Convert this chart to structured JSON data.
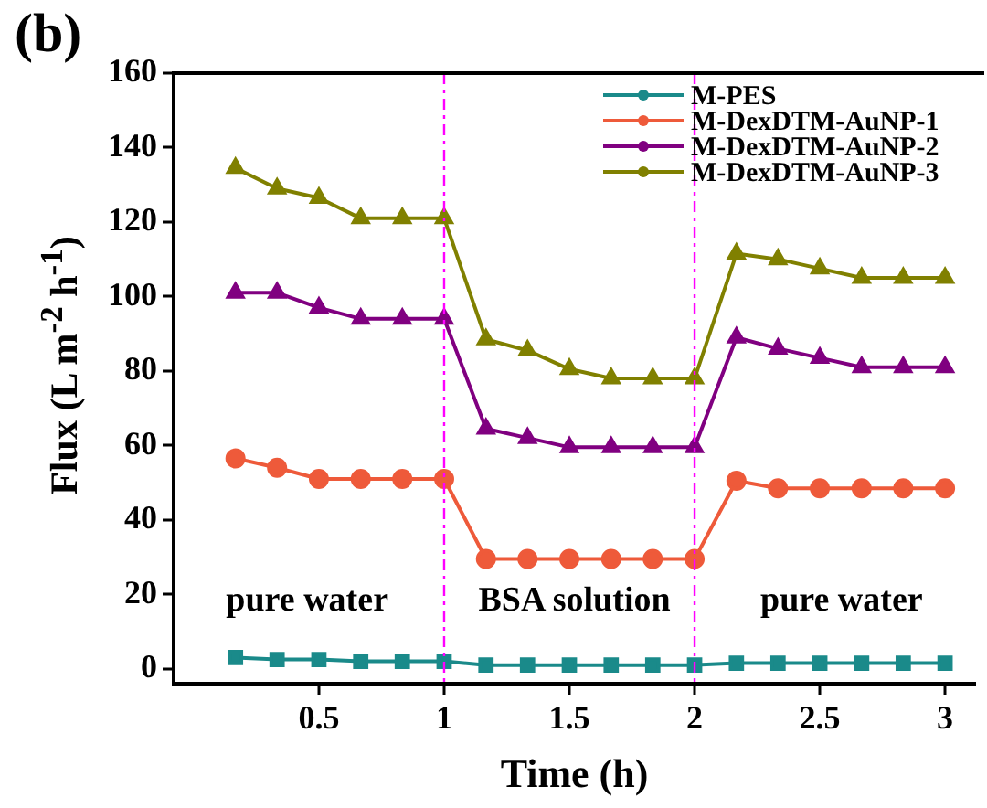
{
  "chart_data": {
    "type": "line",
    "title": "(b)",
    "xlabel": "Time (h)",
    "ylabel": "Flux (L m$^{-2}$ h$^{-1}$)",
    "x": [
      0.167,
      0.333,
      0.5,
      0.667,
      0.833,
      1,
      1.167,
      1.333,
      1.5,
      1.667,
      1.833,
      2,
      2.167,
      2.333,
      2.5,
      2.667,
      2.833,
      3
    ],
    "series": [
      {
        "name": "M-PES",
        "color": "#1a8a8a",
        "marker": "square",
        "values": [
          3,
          2.5,
          2.5,
          2,
          2,
          2,
          1,
          1,
          1,
          1,
          1,
          1,
          1.5,
          1.5,
          1.5,
          1.5,
          1.5,
          1.5
        ]
      },
      {
        "name": "M-DexDTM-AuNP-1",
        "color": "#ee5a3a",
        "marker": "circle",
        "values": [
          56.5,
          54,
          51,
          51,
          51,
          51,
          29.5,
          29.5,
          29.5,
          29.5,
          29.5,
          29.5,
          50.5,
          48.5,
          48.5,
          48.5,
          48.5,
          48.5
        ]
      },
      {
        "name": "M-DexDTM-AuNP-2",
        "color": "#800080",
        "marker": "triangle",
        "values": [
          101,
          101,
          97,
          94,
          94,
          94,
          64.5,
          62,
          59.5,
          59.5,
          59.5,
          59.5,
          89,
          86,
          83.5,
          81,
          81,
          81
        ]
      },
      {
        "name": "M-DexDTM-AuNP-3",
        "color": "#808000",
        "marker": "triangle",
        "values": [
          134.5,
          129,
          126.5,
          121,
          121,
          121,
          88.5,
          85.5,
          80.5,
          78,
          78,
          78,
          111.5,
          110,
          107.5,
          105,
          105,
          105
        ]
      }
    ],
    "xlim": [
      -0.08,
      3.12
    ],
    "xticks": [
      0.5,
      1,
      1.5,
      2,
      2.5,
      3
    ],
    "ylim": [
      -4,
      160
    ],
    "yticks": [
      0,
      20,
      40,
      60,
      80,
      100,
      120,
      140,
      160
    ],
    "ref_lines": [
      {
        "axis": "x",
        "value": 1,
        "color": "#ff00ff",
        "line_style": "dashed"
      },
      {
        "axis": "x",
        "value": 2,
        "color": "#ff00ff",
        "line_style": "dashed"
      }
    ],
    "annotations": [
      "pure water",
      "BSA solution",
      "pure water"
    ],
    "grid": false,
    "legend": "top right",
    "line_style": "solid"
  }
}
